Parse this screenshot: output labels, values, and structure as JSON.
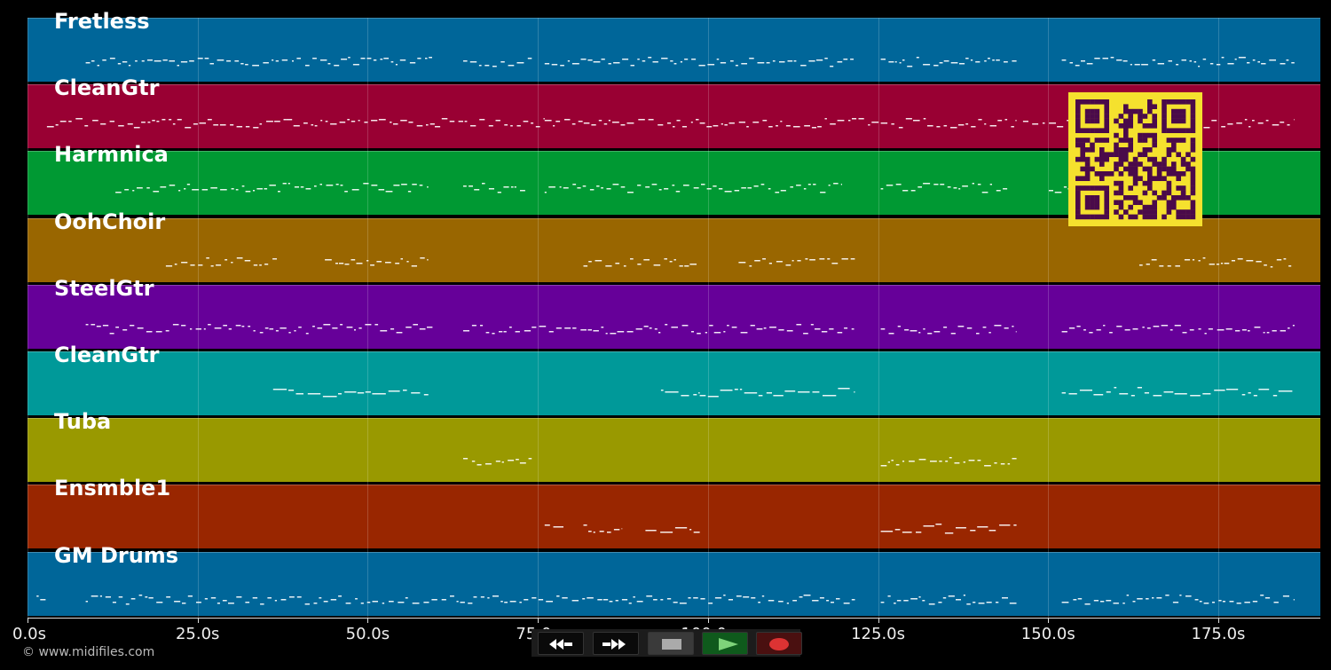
{
  "app": {
    "time_axis": {
      "ticks": [
        "0.0s",
        "25.0s",
        "50.0s",
        "75.0s",
        "100.0s",
        "125.0s",
        "150.0s",
        "175.0s"
      ],
      "max_seconds": 190
    },
    "copyright": "© www.midifiles.com",
    "tracks": [
      {
        "name": "Fretless",
        "color": "#006699"
      },
      {
        "name": "CleanGtr",
        "color": "#990033"
      },
      {
        "name": "Harmnica",
        "color": "#009933"
      },
      {
        "name": "OohChoir",
        "color": "#996600"
      },
      {
        "name": "SteelGtr",
        "color": "#660099"
      },
      {
        "name": "CleanGtr",
        "color": "#009999"
      },
      {
        "name": "Tuba",
        "color": "#999900"
      },
      {
        "name": "Ensmble1",
        "color": "#992600"
      },
      {
        "name": "GM Drums",
        "color": "#006699"
      }
    ],
    "transport": {
      "rewind_icon": "rewind-icon",
      "forward_icon": "fast-forward-icon",
      "stop_icon": "stop-icon",
      "play_icon": "play-icon",
      "record_icon": "record-icon"
    },
    "qr_code": {
      "color": "#f5e12e",
      "module_color": "#4a0a4a"
    }
  }
}
